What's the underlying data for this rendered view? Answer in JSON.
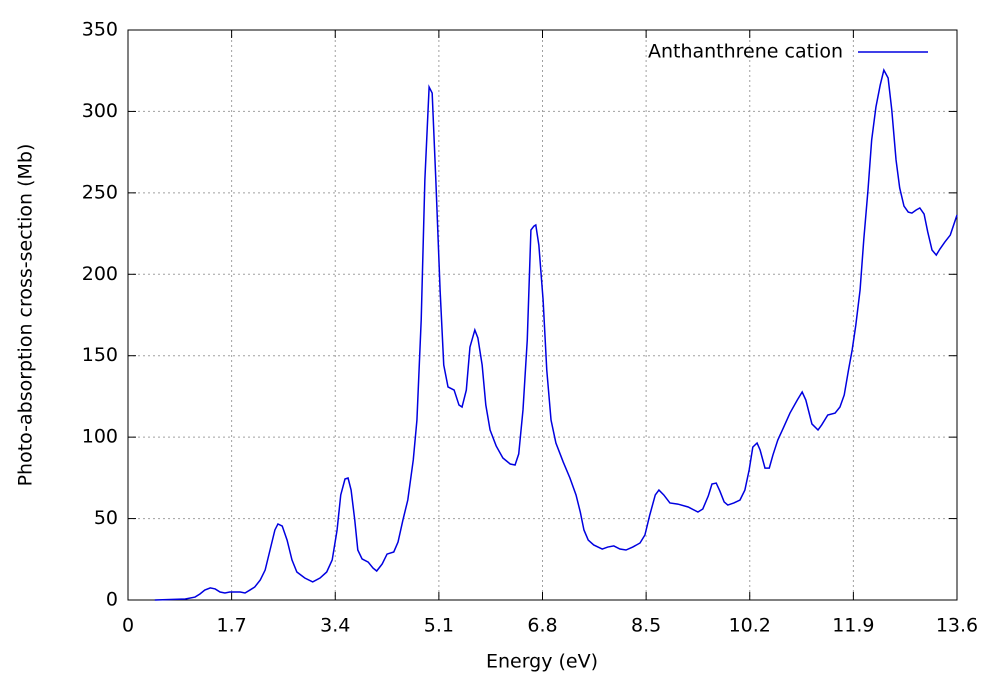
{
  "chart_data": {
    "type": "line",
    "xlabel": "Energy (eV)",
    "ylabel": "Photo-absorption cross-section (Mb)",
    "xlim": [
      0,
      13.6
    ],
    "xticks": [
      0,
      1.7,
      3.4,
      5.1,
      6.8,
      8.5,
      10.2,
      11.9,
      13.6
    ],
    "ylim": [
      0,
      350
    ],
    "yticks": [
      0,
      50,
      100,
      150,
      200,
      250,
      300,
      350
    ],
    "grid": true,
    "legend": "upper right",
    "x": [
      0.44,
      0.94,
      1.1,
      1.18,
      1.26,
      1.35,
      1.43,
      1.51,
      1.59,
      1.67,
      1.84,
      1.92,
      2.0,
      2.08,
      2.17,
      2.25,
      2.33,
      2.41,
      2.46,
      2.53,
      2.61,
      2.69,
      2.77,
      2.9,
      3.03,
      3.15,
      3.26,
      3.35,
      3.43,
      3.49,
      3.56,
      3.61,
      3.66,
      3.72,
      3.77,
      3.84,
      3.94,
      4.02,
      4.08,
      4.17,
      4.25,
      4.36,
      4.43,
      4.51,
      4.59,
      4.68,
      4.74,
      4.81,
      4.87,
      4.94,
      4.99,
      5.05,
      5.12,
      5.18,
      5.25,
      5.35,
      5.43,
      5.48,
      5.55,
      5.61,
      5.69,
      5.74,
      5.81,
      5.87,
      5.94,
      6.04,
      6.15,
      6.27,
      6.35,
      6.41,
      6.48,
      6.55,
      6.61,
      6.66,
      6.69,
      6.74,
      6.81,
      6.87,
      6.94,
      7.02,
      7.14,
      7.25,
      7.35,
      7.42,
      7.48,
      7.55,
      7.64,
      7.78,
      7.87,
      7.97,
      8.07,
      8.17,
      8.28,
      8.4,
      8.48,
      8.56,
      8.65,
      8.71,
      8.79,
      8.89,
      9.02,
      9.19,
      9.35,
      9.43,
      9.52,
      9.58,
      9.65,
      9.71,
      9.78,
      9.84,
      9.94,
      10.04,
      10.12,
      10.19,
      10.25,
      10.32,
      10.37,
      10.45,
      10.52,
      10.58,
      10.66,
      10.75,
      10.86,
      10.98,
      11.06,
      11.12,
      11.22,
      11.32,
      11.38,
      11.48,
      11.6,
      11.68,
      11.75,
      11.82,
      11.88,
      11.94,
      12.01,
      12.07,
      12.14,
      12.2,
      12.27,
      12.34,
      12.4,
      12.47,
      12.53,
      12.6,
      12.66,
      12.73,
      12.8,
      12.86,
      12.93,
      12.99,
      13.06,
      13.12,
      13.19,
      13.26,
      13.32,
      13.4,
      13.49,
      13.6
    ],
    "series": [
      {
        "name": "Anthanthrene cation",
        "color": "#0000e0",
        "values": [
          0,
          0.6,
          1.8,
          3.7,
          6.1,
          7.4,
          6.8,
          4.9,
          4.3,
          4.9,
          4.9,
          4.3,
          6.1,
          8.0,
          12.3,
          18.4,
          30.7,
          43.0,
          46.7,
          45.4,
          36.8,
          24.6,
          17.2,
          13.5,
          11.1,
          13.5,
          17.2,
          24.6,
          43.0,
          64.5,
          74.3,
          74.9,
          67.5,
          49.1,
          30.7,
          25.2,
          23.3,
          19.6,
          17.8,
          22.1,
          28.2,
          29.5,
          35.6,
          49.1,
          61.4,
          86.0,
          110.5,
          171.9,
          257.9,
          315.0,
          311.3,
          257.9,
          190.4,
          144.3,
          130.8,
          128.9,
          119.7,
          118.5,
          128.9,
          155.3,
          165.8,
          160.9,
          144.3,
          119.7,
          104.4,
          94.6,
          87.2,
          83.5,
          82.9,
          89.7,
          116.7,
          159.6,
          227.2,
          229.6,
          230.3,
          218.0,
          184.2,
          141.2,
          110.5,
          96.4,
          84.7,
          74.9,
          64.5,
          54.0,
          43.0,
          36.8,
          33.8,
          31.3,
          32.5,
          33.2,
          31.3,
          30.7,
          32.5,
          35.0,
          39.9,
          52.2,
          64.5,
          67.5,
          64.5,
          59.6,
          58.9,
          57.1,
          54.0,
          55.9,
          63.9,
          71.2,
          71.8,
          66.9,
          60.2,
          58.3,
          59.6,
          61.4,
          67.5,
          79.8,
          93.9,
          96.4,
          92.1,
          81.0,
          81.0,
          89.0,
          98.2,
          105.6,
          114.8,
          122.8,
          127.7,
          122.8,
          108.1,
          104.4,
          107.5,
          113.6,
          114.8,
          118.5,
          125.9,
          141.2,
          153.5,
          168.8,
          190.4,
          221.0,
          251.8,
          282.4,
          302.7,
          316.2,
          325.4,
          320.5,
          300.9,
          270.2,
          253.0,
          241.9,
          238.2,
          237.6,
          239.5,
          240.7,
          237.0,
          226.0,
          214.9,
          211.8,
          215.5,
          219.8,
          224.1,
          236.4
        ]
      }
    ]
  }
}
